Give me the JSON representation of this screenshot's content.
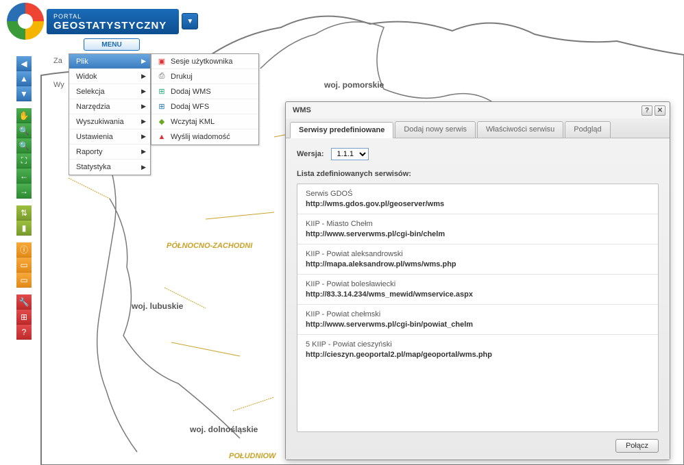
{
  "header": {
    "portal_small": "PORTAL",
    "portal_big": "GEOSTATYSTYCZNY",
    "menu_label": "MENU"
  },
  "side_stubs": {
    "za": "Za",
    "wy": "Wy"
  },
  "menu": {
    "items": [
      {
        "label": "Plik",
        "active": true
      },
      {
        "label": "Widok",
        "active": false
      },
      {
        "label": "Selekcja",
        "active": false
      },
      {
        "label": "Narzędzia",
        "active": false
      },
      {
        "label": "Wyszukiwania",
        "active": false
      },
      {
        "label": "Ustawienia",
        "active": false
      },
      {
        "label": "Raporty",
        "active": false
      },
      {
        "label": "Statystyka",
        "active": false
      }
    ],
    "submenu": [
      {
        "icon": "session-icon",
        "glyph": "▣",
        "color": "#d33",
        "label": "Sesje użytkownika"
      },
      {
        "icon": "print-icon",
        "glyph": "⎙",
        "color": "#555",
        "label": "Drukuj"
      },
      {
        "icon": "wms-icon",
        "glyph": "⊞",
        "color": "#2a7",
        "label": "Dodaj WMS"
      },
      {
        "icon": "wfs-icon",
        "glyph": "⊞",
        "color": "#27a",
        "label": "Dodaj WFS"
      },
      {
        "icon": "kml-icon",
        "glyph": "◆",
        "color": "#6a2",
        "label": "Wczytaj KML"
      },
      {
        "icon": "warn-icon",
        "glyph": "▲",
        "color": "#d33",
        "label": "Wyślij wiadomość"
      }
    ]
  },
  "toolbar": {
    "nav": [
      {
        "name": "collapse-left-icon",
        "glyph": "◀"
      },
      {
        "name": "up-icon",
        "glyph": "▲"
      },
      {
        "name": "down-icon",
        "glyph": "▼"
      }
    ],
    "green": [
      {
        "name": "pan-icon",
        "glyph": "✋"
      },
      {
        "name": "zoom-in-icon",
        "glyph": "🔍"
      },
      {
        "name": "zoom-out-icon",
        "glyph": "🔍"
      },
      {
        "name": "full-extent-icon",
        "glyph": "⛶"
      },
      {
        "name": "prev-extent-icon",
        "glyph": "←"
      },
      {
        "name": "next-extent-icon",
        "glyph": "→"
      }
    ],
    "olive": [
      {
        "name": "stats-icon",
        "glyph": "⇅"
      },
      {
        "name": "chart-icon",
        "glyph": "▮"
      }
    ],
    "orange": [
      {
        "name": "info-icon",
        "glyph": "ⓘ"
      },
      {
        "name": "layers-icon",
        "glyph": "▭"
      },
      {
        "name": "print-icon",
        "glyph": "▭"
      }
    ],
    "red": [
      {
        "name": "tools-icon",
        "glyph": "🔧"
      },
      {
        "name": "flag-icon",
        "glyph": "⊞"
      },
      {
        "name": "help-icon",
        "glyph": "?"
      }
    ]
  },
  "map_labels": {
    "pomorskie": "woj. pomorskie",
    "lubuskie": "woj. lubuskie",
    "dolnoslaskie": "woj. dolnośląskie",
    "region_nw": "PÓŁNOCNO-ZACHODNI",
    "region_sw": "POŁUDNIOW"
  },
  "dialog": {
    "title": "WMS",
    "tabs": [
      {
        "label": "Serwisy predefiniowane",
        "active": true
      },
      {
        "label": "Dodaj nowy serwis",
        "active": false
      },
      {
        "label": "Właściwości serwisu",
        "active": false
      },
      {
        "label": "Podgląd",
        "active": false
      }
    ],
    "version_label": "Wersja:",
    "version_value": "1.1.1",
    "list_label": "Lista zdefiniowanych serwisów:",
    "services": [
      {
        "name": "Serwis GDOŚ",
        "url": "http://wms.gdos.gov.pl/geoserver/wms"
      },
      {
        "name": "KIIP - Miasto Chełm",
        "url": "http://www.serverwms.pl/cgi-bin/chelm"
      },
      {
        "name": "KIIP - Powiat aleksandrowski",
        "url": "http://mapa.aleksandrow.pl/wms/wms.php"
      },
      {
        "name": "KIIP - Powiat bolesławiecki",
        "url": "http://83.3.14.234/wms_mewid/wmservice.aspx"
      },
      {
        "name": "KIIP - Powiat chełmski",
        "url": "http://www.serverwms.pl/cgi-bin/powiat_chelm"
      },
      {
        "name": "5 KIIP - Powiat cieszyński",
        "url": "http://cieszyn.geoportal2.pl/map/geoportal/wms.php"
      }
    ],
    "connect_label": "Połącz"
  },
  "colors": {
    "map_border": "#7a7a7a",
    "map_region": "#c9a227",
    "dialog_bg": "#ededed",
    "blue_grad_a": "#5da0dd",
    "blue_grad_b": "#2f71b4"
  }
}
